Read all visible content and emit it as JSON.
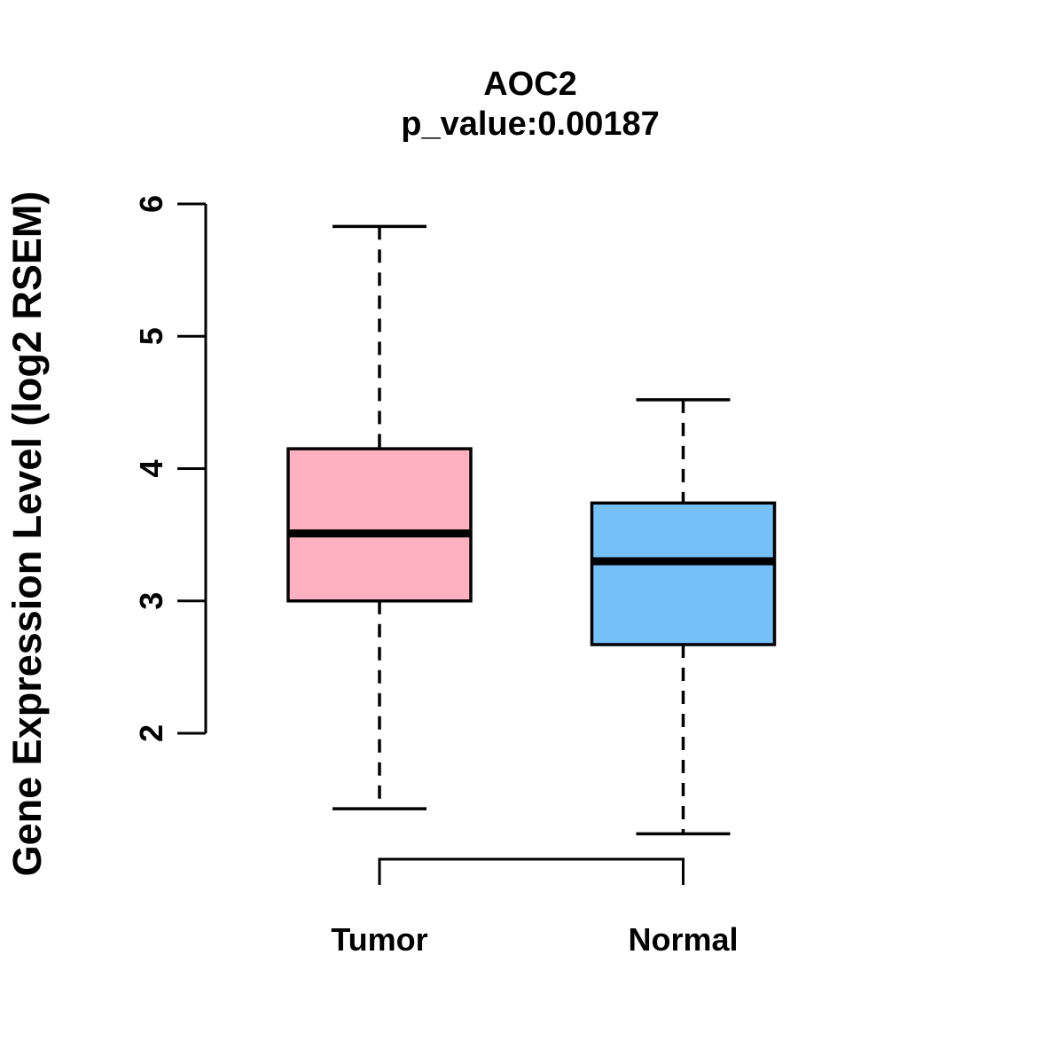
{
  "chart_data": {
    "type": "boxplot",
    "title": "AOC2",
    "subtitle": "p_value:0.00187",
    "ylabel": "Gene Expression Level (log2 RSEM)",
    "xlabel": "",
    "categories": [
      "Tumor",
      "Normal"
    ],
    "y_ticks": [
      2,
      3,
      4,
      5,
      6
    ],
    "axis_range": [
      2,
      6
    ],
    "grid": false,
    "legend_position": "none",
    "colors": {
      "tumor_fill": "#FFB0C1",
      "normal_fill": "#76C0F8",
      "stroke": "#000000",
      "background": "#FFFFFF"
    },
    "series": [
      {
        "name": "Tumor",
        "fill_color": "#FFB0C1",
        "whisker_low": 1.43,
        "q1": 3.0,
        "median": 3.51,
        "q3": 4.15,
        "whisker_high": 5.83
      },
      {
        "name": "Normal",
        "fill_color": "#76C0F8",
        "whisker_low": 1.24,
        "q1": 2.67,
        "median": 3.3,
        "q3": 3.74,
        "whisker_high": 4.52
      }
    ]
  }
}
